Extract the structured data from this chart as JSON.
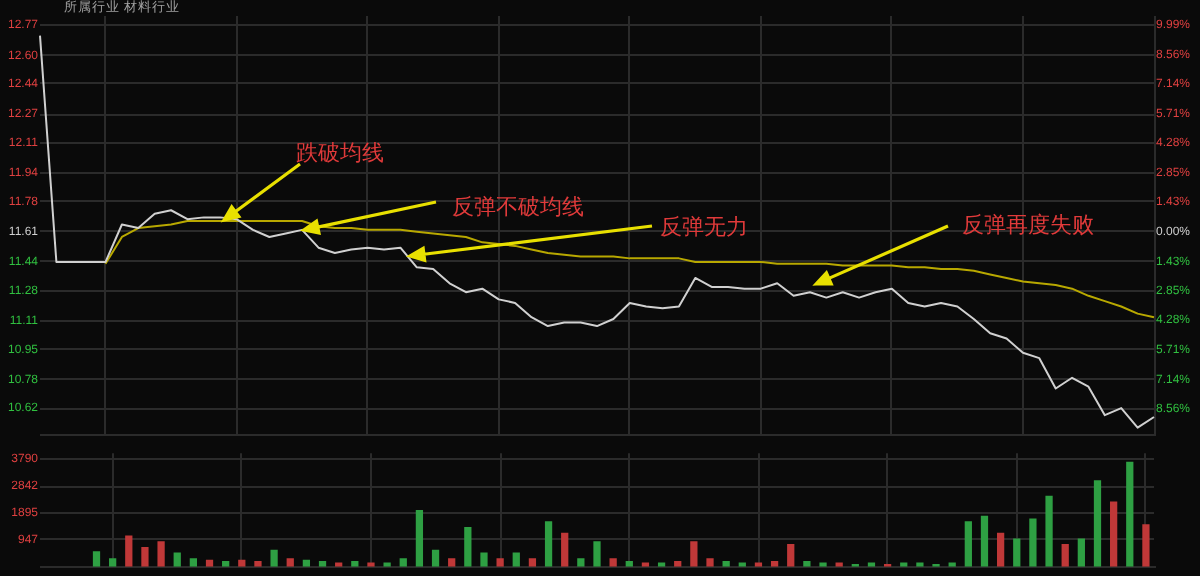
{
  "chart_data": [
    {
      "type": "line",
      "categories": [
        null,
        null,
        null,
        null,
        null,
        null,
        null,
        null,
        null,
        null,
        null,
        null,
        null,
        null,
        null,
        null,
        null,
        null,
        null,
        null,
        null,
        null,
        null,
        null,
        null,
        null,
        null,
        null,
        null,
        null,
        null,
        null,
        null,
        null,
        null,
        null,
        null,
        null,
        null,
        null,
        null,
        null,
        null,
        null,
        null,
        null,
        null,
        null,
        null,
        null,
        null,
        null,
        null,
        null,
        null,
        null,
        null,
        null,
        null,
        null,
        null,
        null,
        null,
        null,
        null,
        null,
        null,
        null,
        null
      ],
      "series": [
        {
          "color": "#d0d0d0",
          "values": [
            12.71,
            11.44,
            11.44,
            11.44,
            11.44,
            11.65,
            11.63,
            11.71,
            11.73,
            11.68,
            11.69,
            11.69,
            11.68,
            11.62,
            11.58,
            11.6,
            11.62,
            11.52,
            11.49,
            11.51,
            11.52,
            11.51,
            11.52,
            11.41,
            11.4,
            11.32,
            11.27,
            11.29,
            11.23,
            11.21,
            11.13,
            11.08,
            11.1,
            11.1,
            11.08,
            11.12,
            11.21,
            11.19,
            11.18,
            11.19,
            11.35,
            11.3,
            11.3,
            11.29,
            11.29,
            11.32,
            11.25,
            11.27,
            11.24,
            11.27,
            11.24,
            11.27,
            11.29,
            11.21,
            11.19,
            11.21,
            11.19,
            11.12,
            11.04,
            11.01,
            10.93,
            10.9,
            10.73,
            10.79,
            10.74,
            10.58,
            10.62,
            10.51,
            10.57
          ]
        },
        {
          "color": "#b8a800",
          "values": [
            null,
            null,
            null,
            null,
            11.43,
            11.58,
            11.63,
            11.64,
            11.65,
            11.67,
            11.67,
            11.67,
            11.67,
            11.67,
            11.67,
            11.67,
            11.67,
            11.64,
            11.63,
            11.63,
            11.62,
            11.62,
            11.62,
            11.61,
            11.6,
            11.59,
            11.58,
            11.55,
            11.54,
            11.53,
            11.51,
            11.49,
            11.48,
            11.47,
            11.47,
            11.47,
            11.46,
            11.46,
            11.46,
            11.46,
            11.44,
            11.44,
            11.44,
            11.44,
            11.44,
            11.43,
            11.43,
            11.43,
            11.43,
            11.42,
            11.42,
            11.42,
            11.42,
            11.41,
            11.41,
            11.4,
            11.4,
            11.39,
            11.37,
            11.35,
            11.33,
            11.32,
            11.31,
            11.29,
            11.25,
            11.22,
            11.19,
            11.15,
            11.13
          ]
        }
      ],
      "ylim": [
        10.47,
        12.82
      ],
      "yticks": [
        12.77,
        {
          "value": 12.6,
          "label": "12.60"
        },
        12.44,
        12.27,
        12.11,
        11.94,
        11.78,
        11.61,
        11.44,
        11.28,
        11.11,
        10.95,
        10.78,
        10.62
      ],
      "y2lim": [
        -9.82,
        10.42
      ],
      "y2ticks": [
        {
          "value": 9.99,
          "label": "9.99%"
        },
        {
          "value": 8.56,
          "label": "8.56%"
        },
        {
          "value": 7.14,
          "label": "7.14%"
        },
        {
          "value": 5.71,
          "label": "5.71%"
        },
        {
          "value": 4.28,
          "label": "4.28%"
        },
        {
          "value": 2.85,
          "label": "2.85%"
        },
        {
          "value": 1.43,
          "label": "1.43%"
        },
        {
          "value": 0,
          "label": "0.00%"
        },
        {
          "value": -1.43,
          "label": "1.43%"
        },
        {
          "value": -2.85,
          "label": "2.85%"
        },
        {
          "value": -4.28,
          "label": "4.28%"
        },
        {
          "value": -5.71,
          "label": "5.71%"
        },
        {
          "value": -7.14,
          "label": "7.14%"
        },
        {
          "value": -8.56,
          "label": "8.56%"
        }
      ],
      "grid": true,
      "tick_labels": "y",
      "marker": "none",
      "annotations": [
        "跌破均线",
        "反弹不破均线",
        "反弹无力",
        "反弹再度失败",
        "所属行业",
        "材料行业"
      ]
    },
    {
      "type": "bar",
      "categories": [
        null,
        null,
        null,
        null,
        null,
        null,
        null,
        null,
        null,
        null,
        null,
        null,
        null,
        null,
        null,
        null,
        null,
        null,
        null,
        null,
        null,
        null,
        null,
        null,
        null,
        null,
        null,
        null,
        null,
        null,
        null,
        null,
        null,
        null,
        null,
        null,
        null,
        null,
        null,
        null,
        null,
        null,
        null,
        null,
        null,
        null,
        null,
        null,
        null,
        null,
        null,
        null,
        null,
        null,
        null,
        null,
        null,
        null,
        null,
        null,
        null,
        null,
        null,
        null,
        null,
        null,
        null,
        null,
        null
      ],
      "values": [
        0,
        0,
        0,
        550,
        300,
        1100,
        700,
        900,
        500,
        300,
        250,
        200,
        250,
        200,
        600,
        300,
        250,
        200,
        150,
        200,
        150,
        150,
        300,
        2000,
        600,
        300,
        1400,
        500,
        300,
        500,
        300,
        1600,
        1200,
        300,
        900,
        300,
        200,
        150,
        150,
        200,
        900,
        300,
        200,
        150,
        150,
        200,
        800,
        200,
        150,
        150,
        100,
        150,
        100,
        150,
        150,
        100,
        150,
        1600,
        1800,
        1200,
        1000,
        1700,
        2500,
        800,
        1000,
        3050,
        2300,
        3700,
        1500
      ],
      "colors": [
        "#2ea043",
        "#2ea043",
        "#2ea043",
        "#2ea043",
        "#2ea043",
        "#c03838",
        "#c03838",
        "#c03838",
        "#2ea043",
        "#2ea043",
        "#c03838",
        "#2ea043",
        "#c03838",
        "#c03838",
        "#2ea043",
        "#c03838",
        "#2ea043",
        "#2ea043",
        "#c03838",
        "#2ea043",
        "#c03838",
        "#2ea043",
        "#2ea043",
        "#2ea043",
        "#2ea043",
        "#c03838",
        "#2ea043",
        "#2ea043",
        "#c03838",
        "#2ea043",
        "#c03838",
        "#2ea043",
        "#c03838",
        "#2ea043",
        "#2ea043",
        "#c03838",
        "#2ea043",
        "#c03838",
        "#2ea043",
        "#c03838",
        "#c03838",
        "#c03838",
        "#2ea043",
        "#2ea043",
        "#c03838",
        "#c03838",
        "#c03838",
        "#2ea043",
        "#2ea043",
        "#c03838",
        "#2ea043",
        "#2ea043",
        "#c03838",
        "#2ea043",
        "#2ea043",
        "#2ea043",
        "#2ea043",
        "#2ea043",
        "#2ea043",
        "#c03838",
        "#2ea043",
        "#2ea043",
        "#2ea043",
        "#c03838",
        "#2ea043",
        "#2ea043",
        "#c03838",
        "#2ea043",
        "#c03838"
      ],
      "ylim": [
        0,
        4000
      ],
      "yticks": [
        947,
        1895,
        2842,
        3790
      ],
      "grid": true,
      "tick_labels": "y"
    }
  ]
}
